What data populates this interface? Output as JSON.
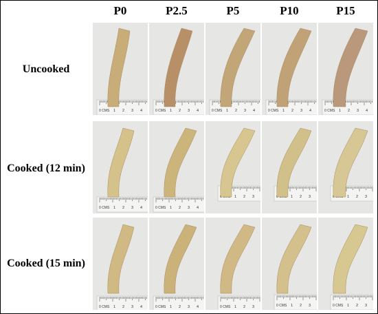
{
  "columns": [
    "P0",
    "P2.5",
    "P5",
    "P10",
    "P15"
  ],
  "rows": [
    {
      "label": "Uncooked"
    },
    {
      "label": "Cooked (12 min)"
    },
    {
      "label": "Cooked (15 min)"
    }
  ],
  "ruler_text": "0 CMS",
  "ruler_numbers": [
    "1",
    "2",
    "3",
    "4"
  ],
  "colors": {
    "background": "#e6e6e4",
    "noodle_uncooked": "#c9ae7a",
    "noodle_cooked": "#d4bf83",
    "ruler": "#f4f4f2",
    "ruler_ink": "#333333"
  },
  "noodle_tint": [
    [
      "#c8ad78",
      "#b79068",
      "#c2a678",
      "#c0a276",
      "#b9987c"
    ],
    [
      "#d5c28b",
      "#cbb57a",
      "#d8c690",
      "#d2c08a",
      "#d6c795"
    ],
    [
      "#d0b982",
      "#cbb279",
      "#d0b984",
      "#d4c08c",
      "#d7c791"
    ]
  ]
}
